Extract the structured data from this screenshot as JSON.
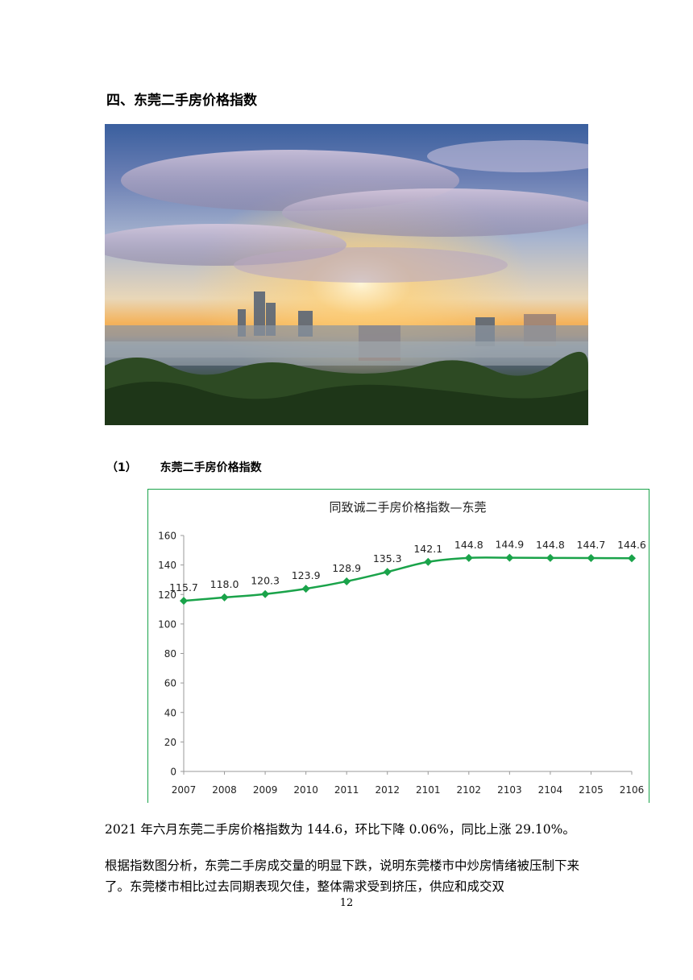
{
  "section_title": "四、东莞二手房价格指数",
  "photo": {
    "alt": "东莞城市日落全景"
  },
  "subheading": {
    "number": "（1）",
    "text": "东莞二手房价格指数"
  },
  "chart_data": {
    "type": "line",
    "title": "同致诚二手房价格指数—东莞",
    "categories": [
      "2007",
      "2008",
      "2009",
      "2010",
      "2011",
      "2012",
      "2101",
      "2102",
      "2103",
      "2104",
      "2105",
      "2106"
    ],
    "series": [
      {
        "values": [
          115.7,
          118.0,
          120.3,
          123.9,
          128.9,
          135.3,
          142.1,
          144.8,
          144.9,
          144.8,
          144.7,
          144.6
        ]
      }
    ],
    "data_labels": [
      "115.7",
      "118.0",
      "120.3",
      "123.9",
      "128.9",
      "135.3",
      "142.1",
      "144.8",
      "144.9",
      "144.8",
      "144.7",
      "144.6"
    ],
    "ylim": [
      0,
      160
    ],
    "yticks": [
      0,
      20,
      40,
      60,
      80,
      100,
      120,
      140,
      160
    ],
    "color": "#1aa34a",
    "grid": false
  },
  "paragraphs": [
    "2021 年六月东莞二手房价格指数为 144.6，环比下降 0.06%，同比上涨 29.10%。",
    "根据指数图分析，东莞二手房成交量的明显下跌，说明东莞楼市中炒房情绪被压制下来了。东莞楼市相比过去同期表现欠佳，整体需求受到挤压，供应和成交双"
  ],
  "page_number": "12"
}
